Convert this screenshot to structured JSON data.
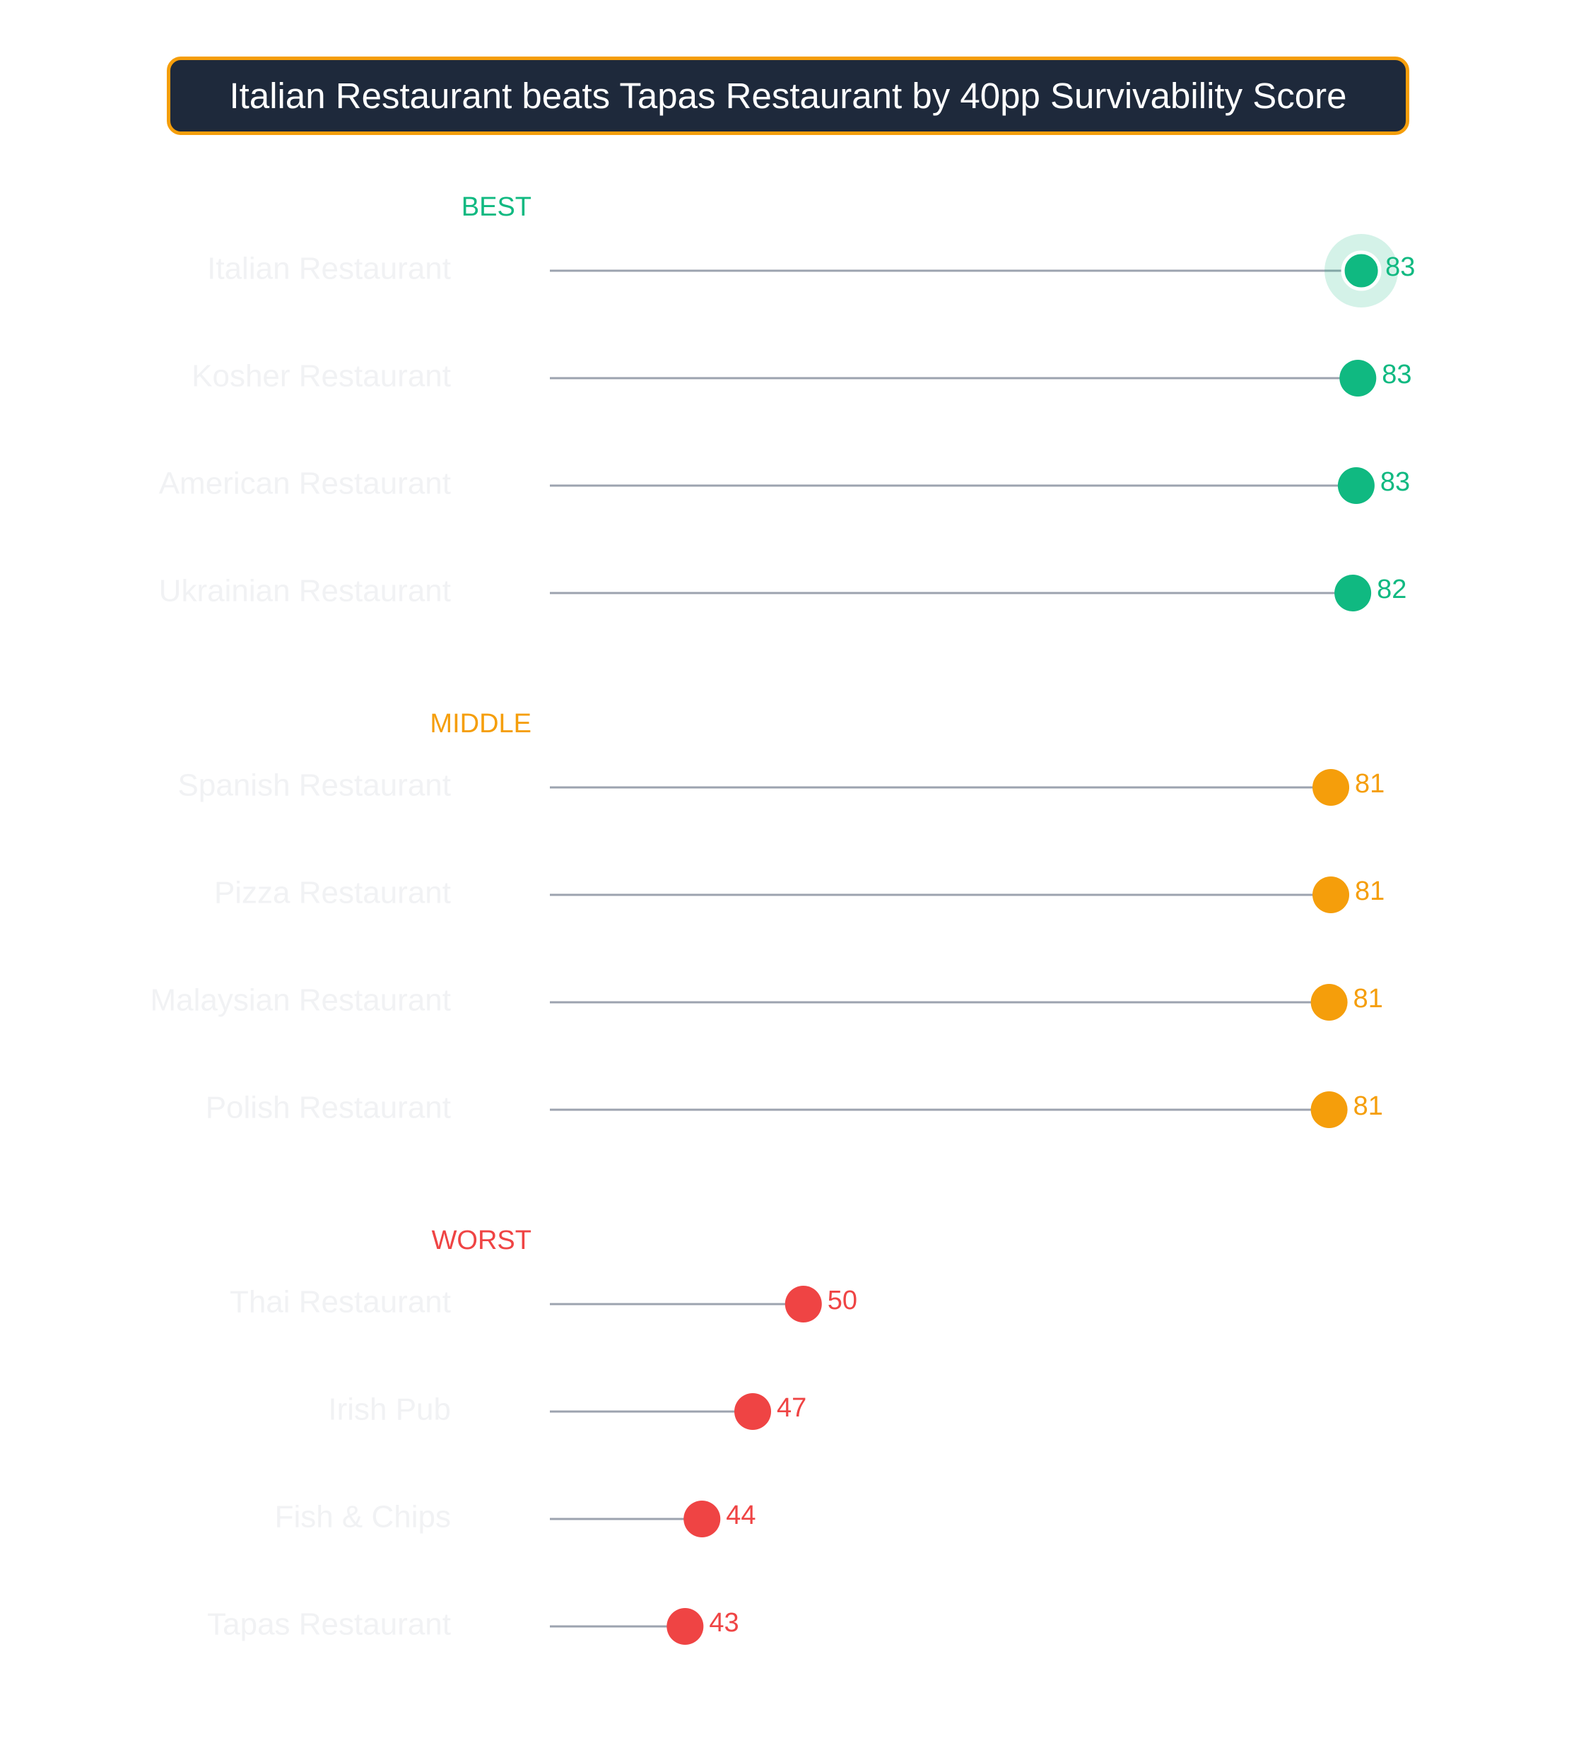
{
  "title": "Italian Restaurant beats Tapas Restaurant by 40pp Survivability Score",
  "chart_data": {
    "type": "lollipop",
    "title": "Italian Restaurant beats Tapas Restaurant by 40pp Survivability Score",
    "xlim": [
      35,
      84
    ],
    "highlight": "Italian Restaurant",
    "groups": [
      {
        "label": "BEST",
        "color": "#10b981",
        "items": [
          {
            "name": "Italian Restaurant",
            "value": 83,
            "label": "83"
          },
          {
            "name": "Kosher Restaurant",
            "value": 82.8,
            "label": "83"
          },
          {
            "name": "American Restaurant",
            "value": 82.7,
            "label": "83"
          },
          {
            "name": "Ukrainian Restaurant",
            "value": 82.5,
            "label": "82"
          }
        ]
      },
      {
        "label": "MIDDLE",
        "color": "#f59e0b",
        "items": [
          {
            "name": "Spanish Restaurant",
            "value": 81.2,
            "label": "81"
          },
          {
            "name": "Pizza Restaurant",
            "value": 81.2,
            "label": "81"
          },
          {
            "name": "Malaysian Restaurant",
            "value": 81.1,
            "label": "81"
          },
          {
            "name": "Polish Restaurant",
            "value": 81.1,
            "label": "81"
          }
        ]
      },
      {
        "label": "WORST",
        "color": "#ef4444",
        "items": [
          {
            "name": "Thai Restaurant",
            "value": 50,
            "label": "50"
          },
          {
            "name": "Irish Pub",
            "value": 47,
            "label": "47"
          },
          {
            "name": "Fish & Chips",
            "value": 44,
            "label": "44"
          },
          {
            "name": "Tapas Restaurant",
            "value": 43,
            "label": "43"
          }
        ]
      }
    ]
  }
}
